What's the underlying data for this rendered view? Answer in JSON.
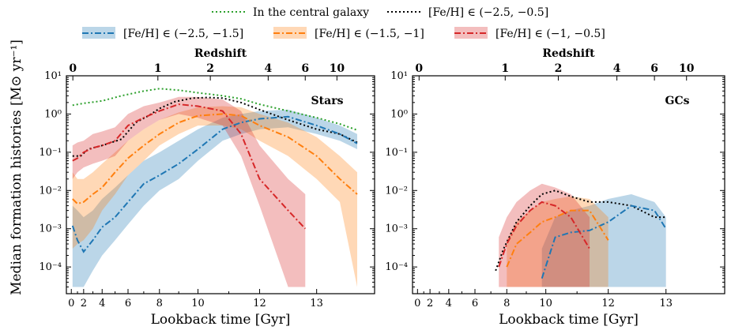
{
  "legend": [
    {
      "label": "In the central galaxy",
      "color": "#2ca02c",
      "style": "dotted",
      "band": false
    },
    {
      "label": "[Fe/H] ∈ (−2.5, −0.5]",
      "color": "#000000",
      "style": "dotted",
      "band": false
    },
    {
      "label": "[Fe/H] ∈ (−2.5, −1.5]",
      "color": "#1f77b4",
      "style": "dashdot",
      "band": true
    },
    {
      "label": "[Fe/H] ∈ (−1.5, −1]",
      "color": "#ff7f0e",
      "style": "dashdot",
      "band": true
    },
    {
      "label": "[Fe/H] ∈ (−1, −0.5]",
      "color": "#d62728",
      "style": "dashdot",
      "band": true
    }
  ],
  "ylabel": "Median formation histories [M⊙ yr⁻¹]",
  "y_tick_labels": [
    "10¹",
    "10⁰",
    "10⁻¹",
    "10⁻²",
    "10⁻³",
    "10⁻⁴"
  ],
  "chart_data": [
    {
      "type": "line",
      "panel_label": "Stars",
      "xlabel": "Lookback time [Gyr]",
      "top_xlabel": "Redshift",
      "x_ticks": [
        "0",
        "2",
        "4",
        "6",
        "8",
        "10",
        "12",
        "13"
      ],
      "top_ticks": [
        "0",
        "1",
        "2",
        "4",
        "6",
        "10"
      ],
      "yscale": "log",
      "ylim": [
        2e-05,
        10
      ],
      "series": [
        {
          "name": "In the central galaxy",
          "color": "#2ca02c",
          "style": "dotted",
          "x": [
            0.2,
            2,
            4,
            5.5,
            7,
            8,
            9,
            10,
            10.8,
            11.4,
            12,
            12.5,
            13,
            13.4,
            13.7
          ],
          "y": [
            1.7,
            1.9,
            2.2,
            3,
            4,
            4.6,
            4.2,
            3.6,
            3,
            2.5,
            1.8,
            1.2,
            0.8,
            0.55,
            0.38
          ]
        },
        {
          "name": "[Fe/H] ∈ (−2.5, −0.5]",
          "color": "#000000",
          "style": "dotted",
          "x": [
            0.2,
            1.5,
            2.5,
            4,
            5.5,
            6.5,
            7.3,
            8,
            8.8,
            9.7,
            10.3,
            10.8,
            11.4,
            12,
            12.5,
            13,
            13.4,
            13.7
          ],
          "y": [
            0.08,
            0.08,
            0.12,
            0.15,
            0.22,
            0.6,
            0.9,
            1.4,
            2.1,
            2.6,
            2.7,
            2.6,
            2,
            1.3,
            0.7,
            0.4,
            0.3,
            0.18
          ]
        },
        {
          "name": "[Fe/H] ∈ (−2.5, −1.5]",
          "color": "#1f77b4",
          "style": "dashdot",
          "x": [
            0.2,
            1,
            2,
            3,
            4,
            5,
            6,
            7,
            8,
            9,
            10,
            10.8,
            11.4,
            12,
            12.5,
            13,
            13.4,
            13.7
          ],
          "y": [
            0.0012,
            0.0005,
            0.00025,
            0.0005,
            0.0011,
            0.002,
            0.005,
            0.015,
            0.025,
            0.05,
            0.12,
            0.4,
            0.6,
            0.75,
            0.85,
            0.5,
            0.3,
            0.17
          ],
          "lo": [
            3e-05,
            3e-05,
            3e-05,
            8e-05,
            0.0002,
            0.0005,
            0.0013,
            0.004,
            0.01,
            0.02,
            0.06,
            0.2,
            0.3,
            0.4,
            0.45,
            0.3,
            0.2,
            0.12
          ],
          "hi": [
            0.004,
            0.003,
            0.002,
            0.003,
            0.006,
            0.012,
            0.025,
            0.06,
            0.1,
            0.2,
            0.4,
            0.8,
            1,
            1.2,
            1.3,
            0.8,
            0.5,
            0.3
          ]
        },
        {
          "name": "[Fe/H] ∈ (−1.5, −1]",
          "color": "#ff7f0e",
          "style": "dashdot",
          "x": [
            0.2,
            1,
            2,
            3,
            4,
            5,
            6,
            7,
            8,
            9,
            10,
            10.8,
            11.4,
            12,
            12.5,
            13,
            13.4,
            13.7
          ],
          "y": [
            0.006,
            0.0045,
            0.005,
            0.008,
            0.012,
            0.03,
            0.07,
            0.15,
            0.3,
            0.6,
            0.9,
            1.0,
            0.9,
            0.5,
            0.25,
            0.08,
            0.02,
            0.008
          ],
          "lo": [
            0.0003,
            0.0004,
            0.0005,
            0.001,
            0.003,
            0.008,
            0.025,
            0.06,
            0.15,
            0.3,
            0.5,
            0.5,
            0.4,
            0.2,
            0.08,
            0.02,
            0.005,
            3e-05
          ],
          "hi": [
            0.03,
            0.02,
            0.02,
            0.03,
            0.05,
            0.1,
            0.2,
            0.4,
            0.7,
            1.1,
            1.5,
            1.6,
            1.5,
            1.0,
            0.6,
            0.25,
            0.08,
            0.03
          ]
        },
        {
          "name": "[Fe/H] ∈ (−1, −0.5]",
          "color": "#d62728",
          "style": "dashdot",
          "x": [
            0.2,
            1,
            2,
            3,
            4,
            5,
            6,
            7,
            8,
            9,
            10,
            10.8,
            11.4,
            12,
            12.5,
            12.8
          ],
          "y": [
            0.06,
            0.07,
            0.1,
            0.13,
            0.15,
            0.2,
            0.5,
            0.8,
            1.2,
            1.8,
            1.6,
            1.2,
            0.3,
            0.02,
            0.003,
            0.001
          ],
          "lo": [
            0.02,
            0.03,
            0.04,
            0.05,
            0.06,
            0.08,
            0.2,
            0.4,
            0.7,
            1.0,
            0.8,
            0.5,
            0.08,
            0.004,
            3e-05,
            3e-05
          ],
          "hi": [
            0.15,
            0.18,
            0.2,
            0.3,
            0.35,
            0.45,
            1.0,
            1.6,
            2.0,
            2.8,
            2.8,
            2.4,
            1.2,
            0.15,
            0.02,
            0.008
          ]
        }
      ]
    },
    {
      "type": "line",
      "panel_label": "GCs",
      "xlabel": "Lookback time [Gyr]",
      "top_xlabel": "Redshift",
      "x_ticks": [
        "0",
        "2",
        "4",
        "6",
        "8",
        "10",
        "12",
        "13"
      ],
      "top_ticks": [
        "0",
        "1",
        "2",
        "4",
        "6",
        "10"
      ],
      "yscale": "log",
      "ylim": [
        2e-05,
        10
      ],
      "series": [
        {
          "name": "[Fe/H] ∈ (−2.5, −0.5]",
          "color": "#000000",
          "style": "dotted",
          "x": [
            7.3,
            7.8,
            8.5,
            9.2,
            9.8,
            10.3,
            10.8,
            11.4,
            12,
            12.4,
            12.8,
            13
          ],
          "y": [
            8e-05,
            0.0003,
            0.0015,
            0.004,
            0.008,
            0.01,
            0.007,
            0.005,
            0.005,
            0.004,
            0.002,
            0.002
          ]
        },
        {
          "name": "[Fe/H] ∈ (−2.5, −1.5]",
          "color": "#1f77b4",
          "style": "dashdot",
          "x": [
            9.8,
            10.3,
            10.8,
            11.4,
            12,
            12.4,
            12.8,
            13
          ],
          "y": [
            5e-05,
            0.0006,
            0.0008,
            0.0009,
            0.0015,
            0.004,
            0.003,
            0.001
          ],
          "lo": [
            3e-05,
            3e-05,
            3e-05,
            3e-05,
            3e-05,
            3e-05,
            3e-05,
            3e-05
          ],
          "hi": [
            0.0003,
            0.002,
            0.003,
            0.004,
            0.006,
            0.008,
            0.005,
            0.002
          ]
        },
        {
          "name": "[Fe/H] ∈ (−1.5, −1]",
          "color": "#ff7f0e",
          "style": "dashdot",
          "x": [
            8,
            8.5,
            9.2,
            9.8,
            10.3,
            10.8,
            11.4,
            12
          ],
          "y": [
            0.0001,
            0.0004,
            0.0008,
            0.0015,
            0.002,
            0.003,
            0.003,
            0.0005
          ],
          "lo": [
            3e-05,
            3e-05,
            3e-05,
            3e-05,
            3e-05,
            3e-05,
            3e-05,
            3e-05
          ],
          "hi": [
            0.0005,
            0.0015,
            0.003,
            0.005,
            0.006,
            0.007,
            0.006,
            0.002
          ]
        },
        {
          "name": "[Fe/H] ∈ (−1, −0.5]",
          "color": "#d62728",
          "style": "dashdot",
          "x": [
            7.5,
            8,
            8.5,
            9.2,
            9.8,
            10.3,
            10.8,
            11.4
          ],
          "y": [
            0.0001,
            0.0004,
            0.0012,
            0.003,
            0.005,
            0.004,
            0.002,
            0.0003
          ],
          "lo": [
            3e-05,
            3e-05,
            3e-05,
            3e-05,
            3e-05,
            3e-05,
            3e-05,
            3e-05
          ],
          "hi": [
            0.0006,
            0.002,
            0.005,
            0.01,
            0.015,
            0.012,
            0.008,
            0.002
          ]
        }
      ]
    }
  ]
}
